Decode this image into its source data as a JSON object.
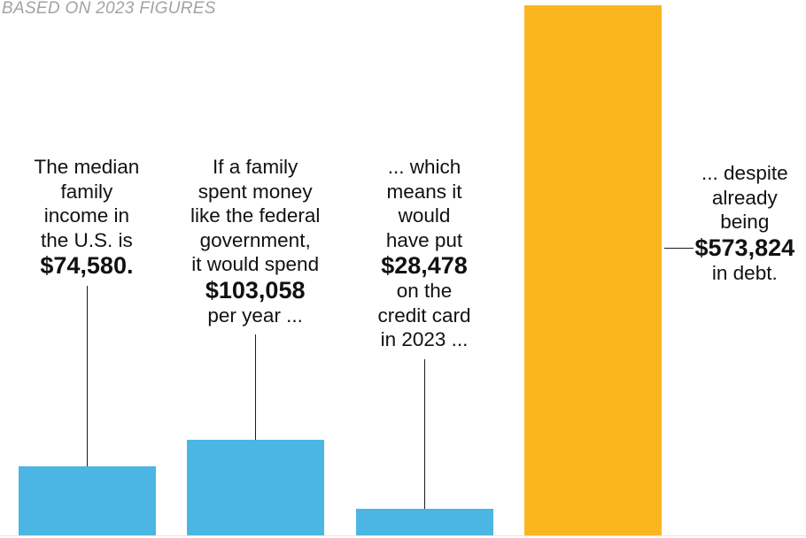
{
  "subtitle": "BASED ON 2023 FIGURES",
  "colors": {
    "blue": "#4bb6e3",
    "orange": "#fbb51f",
    "text": "#111111",
    "subtitle": "#a3a3a3",
    "leader": "#1a1a1a"
  },
  "chart_data": {
    "type": "bar",
    "categories": [
      "Median family income",
      "Family spending like the federal government",
      "Put on the credit card in 2023",
      "Debt"
    ],
    "values": [
      74580,
      103058,
      28478,
      573824
    ],
    "bar_colors": [
      "#4bb6e3",
      "#4bb6e3",
      "#4bb6e3",
      "#fbb51f"
    ],
    "title": "",
    "subtitle": "BASED ON 2023 FIGURES",
    "xlabel": "",
    "ylabel": "",
    "ylim": [
      0,
      573824
    ],
    "grid": false,
    "legend": "none",
    "annotations": [
      {
        "lines_before": [
          "The median",
          "family",
          "income in",
          "the U.S. is"
        ],
        "amount": "$74,580.",
        "lines_after": []
      },
      {
        "lines_before": [
          "If a family",
          "spent money",
          "like the federal",
          "government,",
          "it would spend"
        ],
        "amount": "$103,058",
        "lines_after": [
          "per year ..."
        ]
      },
      {
        "lines_before": [
          "... which",
          "means it",
          "would",
          "have put"
        ],
        "amount": "$28,478",
        "lines_after": [
          "on the",
          "credit card",
          "in 2023 ..."
        ]
      },
      {
        "lines_before": [
          "... despite",
          "already",
          "being"
        ],
        "amount": "$573,824",
        "lines_after": [
          "in debt."
        ]
      }
    ]
  }
}
